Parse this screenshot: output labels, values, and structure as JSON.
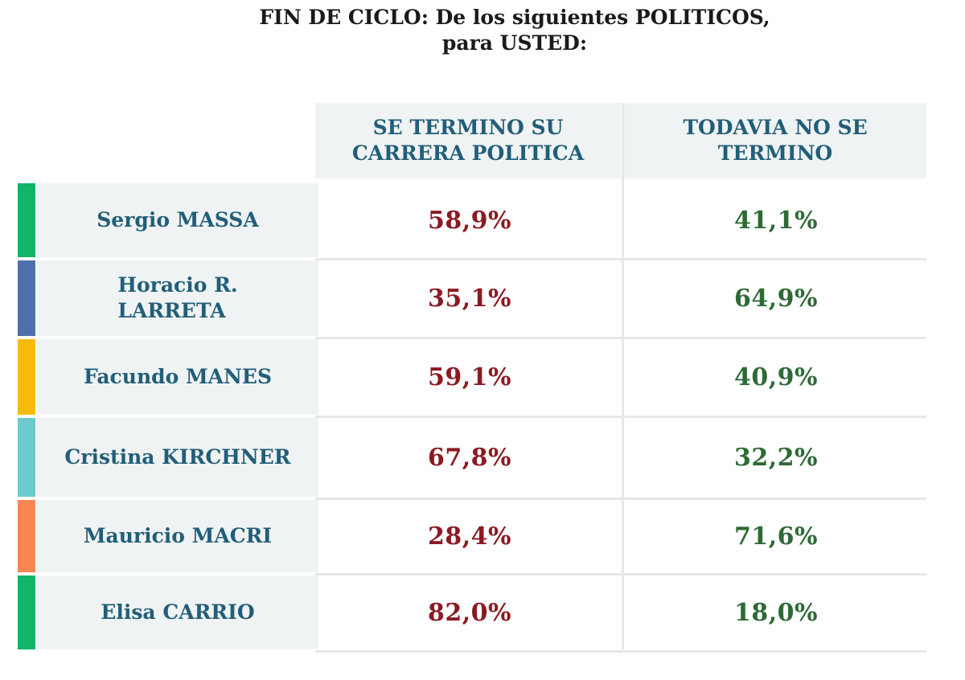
{
  "title": {
    "line1": "FIN DE CICLO: De los siguientes POLITICOS,",
    "line2": "para USTED:"
  },
  "columns": {
    "col1_line1": "SE TERMINO SU",
    "col1_line2": "CARRERA POLITICA",
    "col2_line1": "TODAVIA NO SE",
    "col2_line2": "TERMINO"
  },
  "rows": [
    {
      "name_line1": "Sergio MASSA",
      "name_line2": "",
      "se_termino": "58,9%",
      "todavia_no": "41,1%",
      "color": "#11b46a"
    },
    {
      "name_line1": "Horacio R.",
      "name_line2": "LARRETA",
      "se_termino": "35,1%",
      "todavia_no": "64,9%",
      "color": "#4e6fab"
    },
    {
      "name_line1": "Facundo MANES",
      "name_line2": "",
      "se_termino": "59,1%",
      "todavia_no": "40,9%",
      "color": "#f7bb0b"
    },
    {
      "name_line1": "Cristina KIRCHNER",
      "name_line2": "",
      "se_termino": "67,8%",
      "todavia_no": "32,2%",
      "color": "#6dcacd"
    },
    {
      "name_line1": "Mauricio MACRI",
      "name_line2": "",
      "se_termino": "28,4%",
      "todavia_no": "71,6%",
      "color": "#fb8653"
    },
    {
      "name_line1": "Elisa CARRIO",
      "name_line2": "",
      "se_termino": "82,0%",
      "todavia_no": "18,0%",
      "color": "#11b46a"
    }
  ],
  "chart_data": {
    "type": "table",
    "title": "FIN DE CICLO: De los siguientes POLITICOS, para USTED:",
    "columns": [
      "SE TERMINO SU CARRERA POLITICA",
      "TODAVIA NO SE TERMINO"
    ],
    "categories": [
      "Sergio MASSA",
      "Horacio R. LARRETA",
      "Facundo MANES",
      "Cristina KIRCHNER",
      "Mauricio MACRI",
      "Elisa CARRIO"
    ],
    "series": [
      {
        "name": "SE TERMINO SU CARRERA POLITICA",
        "values": [
          58.9,
          35.1,
          59.1,
          67.8,
          28.4,
          82.0
        ]
      },
      {
        "name": "TODAVIA NO SE TERMINO",
        "values": [
          41.1,
          64.9,
          40.9,
          32.2,
          71.6,
          18.0
        ]
      }
    ]
  }
}
